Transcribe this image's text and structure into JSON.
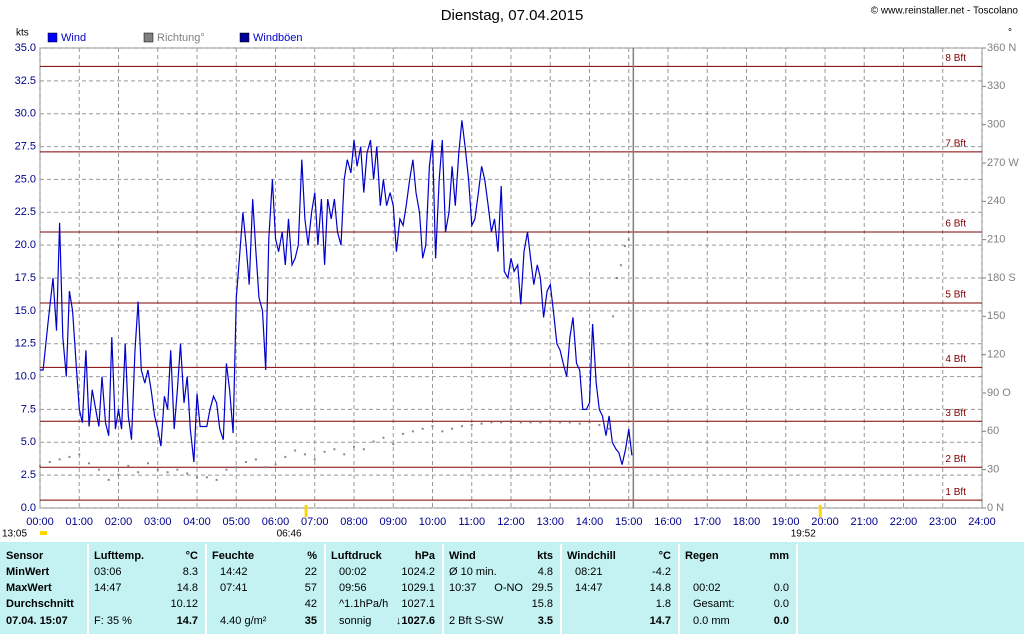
{
  "chart_data": {
    "type": "line",
    "title": "Dienstag, 07.04.2015",
    "credit": "© www.reinstaller.net - Toscolano",
    "ylabel": "kts",
    "y2label": "°",
    "legend": [
      {
        "name": "Wind",
        "color": "#0000ff"
      },
      {
        "name": "Richtung°",
        "color": "#808080"
      },
      {
        "name": "Windböen",
        "color": "#000099"
      }
    ],
    "xlim": [
      0,
      24
    ],
    "xticks": [
      {
        "value": 0,
        "label": "00:00"
      },
      {
        "value": 1,
        "label": "01:00"
      },
      {
        "value": 2,
        "label": "02:00"
      },
      {
        "value": 3,
        "label": "03:00"
      },
      {
        "value": 4,
        "label": "04:00"
      },
      {
        "value": 5,
        "label": "05:00"
      },
      {
        "value": 6,
        "label": "06:00"
      },
      {
        "value": 7,
        "label": "07:00"
      },
      {
        "value": 8,
        "label": "08:00"
      },
      {
        "value": 9,
        "label": "09:00"
      },
      {
        "value": 10,
        "label": "10:00"
      },
      {
        "value": 11,
        "label": "11:00"
      },
      {
        "value": 12,
        "label": "12:00"
      },
      {
        "value": 13,
        "label": "13:00"
      },
      {
        "value": 14,
        "label": "14:00"
      },
      {
        "value": 15,
        "label": "15:00"
      },
      {
        "value": 16,
        "label": "16:00"
      },
      {
        "value": 17,
        "label": "17:00"
      },
      {
        "value": 18,
        "label": "18:00"
      },
      {
        "value": 19,
        "label": "19:00"
      },
      {
        "value": 20,
        "label": "20:00"
      },
      {
        "value": 21,
        "label": "21:00"
      },
      {
        "value": 22,
        "label": "22:00"
      },
      {
        "value": 23,
        "label": "23:00"
      },
      {
        "value": 24,
        "label": "24:00"
      }
    ],
    "ylim": [
      0,
      35
    ],
    "yticks": [
      {
        "value": 0,
        "label": "0.0"
      },
      2.5,
      {
        "value": 5,
        "label": "5.0"
      },
      7.5,
      {
        "value": 10,
        "label": "10.0"
      },
      12.5,
      {
        "value": 15,
        "label": "15.0"
      },
      17.5,
      {
        "value": 20,
        "label": "20.0"
      },
      22.5,
      {
        "value": 25,
        "label": "25.0"
      },
      27.5,
      {
        "value": 30,
        "label": "30.0"
      },
      32.5,
      {
        "value": 35,
        "label": "35.0"
      }
    ],
    "y2lim": [
      0,
      360
    ],
    "y2ticks": [
      {
        "value": 0,
        "label": "0 N"
      },
      30,
      60,
      {
        "value": 90,
        "label": "90 O"
      },
      120,
      150,
      {
        "value": 180,
        "label": "180 S"
      },
      210,
      240,
      {
        "value": 270,
        "label": "270 W"
      },
      300,
      330,
      {
        "value": 360,
        "label": "360 N"
      }
    ],
    "grid": true,
    "beaufort": [
      {
        "value": 0.6,
        "label": "1 Bft"
      },
      {
        "value": 3.1,
        "label": "2 Bft"
      },
      {
        "value": 6.6,
        "label": "3 Bft"
      },
      {
        "value": 10.7,
        "label": "4 Bft"
      },
      {
        "value": 15.6,
        "label": "5 Bft"
      },
      {
        "value": 21,
        "label": "6 Bft"
      },
      {
        "value": 27.1,
        "label": "7 Bft"
      },
      {
        "value": 33.6,
        "label": "8 Bft"
      }
    ],
    "sunrise": {
      "value": 6.767,
      "label": "06:46"
    },
    "sunset": {
      "value": 19.867,
      "label": "19:52"
    },
    "day_length": "13:05",
    "now": 15.117,
    "series": [
      {
        "name": "Windböen",
        "color": "#0000cc",
        "x": [
          0,
          0.08,
          0.2,
          0.33,
          0.42,
          0.5,
          0.58,
          0.67,
          0.75,
          0.83,
          0.92,
          1,
          1.08,
          1.17,
          1.25,
          1.33,
          1.42,
          1.5,
          1.58,
          1.67,
          1.75,
          1.83,
          1.92,
          2,
          2.08,
          2.17,
          2.25,
          2.33,
          2.42,
          2.5,
          2.58,
          2.67,
          2.75,
          2.83,
          2.92,
          3,
          3.08,
          3.17,
          3.25,
          3.33,
          3.42,
          3.5,
          3.58,
          3.67,
          3.75,
          3.83,
          3.92,
          4,
          4.08,
          4.17,
          4.25,
          4.33,
          4.42,
          4.5,
          4.58,
          4.67,
          4.75,
          4.83,
          4.92,
          5,
          5.08,
          5.17,
          5.25,
          5.33,
          5.42,
          5.5,
          5.58,
          5.67,
          5.75,
          5.83,
          5.92,
          6,
          6.08,
          6.17,
          6.25,
          6.33,
          6.42,
          6.5,
          6.58,
          6.67,
          6.75,
          6.83,
          6.92,
          7,
          7.08,
          7.17,
          7.25,
          7.33,
          7.42,
          7.5,
          7.58,
          7.67,
          7.75,
          7.83,
          7.92,
          8,
          8.08,
          8.17,
          8.25,
          8.33,
          8.42,
          8.5,
          8.58,
          8.67,
          8.75,
          8.83,
          8.92,
          9,
          9.08,
          9.17,
          9.25,
          9.33,
          9.42,
          9.5,
          9.58,
          9.67,
          9.75,
          9.83,
          9.92,
          10,
          10.08,
          10.17,
          10.25,
          10.33,
          10.42,
          10.5,
          10.58,
          10.67,
          10.75,
          10.83,
          10.92,
          11,
          11.08,
          11.17,
          11.25,
          11.33,
          11.42,
          11.5,
          11.58,
          11.67,
          11.75,
          11.83,
          11.92,
          12,
          12.08,
          12.17,
          12.25,
          12.33,
          12.42,
          12.5,
          12.58,
          12.67,
          12.75,
          12.83,
          12.92,
          13,
          13.08,
          13.17,
          13.25,
          13.33,
          13.42,
          13.5,
          13.58,
          13.67,
          13.75,
          13.83,
          13.92,
          14,
          14.08,
          14.17,
          14.25,
          14.33,
          14.42,
          14.5,
          14.58,
          14.67,
          14.75,
          14.83,
          14.92,
          15,
          15.08
        ],
        "values": [
          10.5,
          10.5,
          14,
          17.5,
          13.5,
          21.7,
          13,
          10,
          16.5,
          15,
          11,
          7.5,
          6.5,
          12,
          6.2,
          9,
          7.5,
          6.2,
          10,
          6.5,
          5.5,
          13,
          6,
          7.5,
          6,
          12.5,
          7,
          5.2,
          12,
          15.7,
          10.5,
          9.5,
          10.5,
          9,
          7,
          6,
          4.7,
          8.5,
          7.5,
          12,
          6,
          9,
          12.5,
          8,
          10,
          6,
          3.5,
          8.7,
          6.2,
          6.2,
          6.2,
          7.5,
          8.5,
          8,
          6,
          5.2,
          11,
          9,
          5.7,
          16,
          19,
          22.5,
          20,
          17,
          23.5,
          19.5,
          16,
          15,
          10.5,
          20.5,
          25,
          20.5,
          19.5,
          21,
          18.5,
          22,
          18.5,
          19,
          20,
          26.5,
          22,
          20,
          22.5,
          24,
          20,
          23.5,
          18.5,
          23.5,
          22,
          23.5,
          21,
          20,
          25,
          26.5,
          25.5,
          28,
          26,
          27.5,
          24,
          27,
          28,
          25,
          27.5,
          23,
          25,
          23,
          24,
          23,
          19.5,
          22,
          21.5,
          23,
          25,
          26.5,
          24,
          22.5,
          19,
          20,
          26,
          28,
          19,
          25,
          28,
          21,
          22.5,
          26,
          23,
          27,
          29.5,
          27.5,
          25,
          21.5,
          22,
          24,
          26,
          25,
          23,
          21,
          22,
          19.5,
          24.5,
          18,
          17.5,
          19,
          18,
          18.5,
          15.5,
          19.5,
          21,
          19,
          17,
          18.5,
          17.5,
          14.5,
          16.5,
          17,
          15,
          12.5,
          12,
          11,
          10,
          13,
          14.5,
          11,
          10.5,
          7.5,
          7.5,
          8,
          14,
          9.5,
          7.5,
          7,
          5.5,
          7,
          5,
          4.5,
          4.2,
          3.3,
          4.5,
          6,
          4
        ]
      },
      {
        "name": "Richtung°",
        "color": "#888888",
        "axis": "y2",
        "x": [
          0,
          0.25,
          0.5,
          0.75,
          1,
          1.25,
          1.5,
          1.75,
          2,
          2.25,
          2.5,
          2.75,
          3,
          3.25,
          3.5,
          3.75,
          4,
          4.25,
          4.5,
          4.75,
          5,
          5.25,
          5.5,
          5.75,
          6,
          6.25,
          6.5,
          6.75,
          7,
          7.25,
          7.5,
          7.75,
          8,
          8.25,
          8.5,
          8.75,
          9,
          9.25,
          9.5,
          9.75,
          10,
          10.25,
          10.5,
          10.75,
          11,
          11.25,
          11.5,
          11.75,
          12,
          12.25,
          12.5,
          12.75,
          13,
          13.25,
          13.5,
          13.75,
          14,
          14.25,
          14.5,
          14.6,
          14.7,
          14.8,
          14.9,
          15
        ],
        "values": [
          33,
          36,
          38,
          40,
          42,
          35,
          30,
          22,
          26,
          33,
          28,
          35,
          30,
          28,
          30,
          27,
          24,
          24,
          22,
          30,
          32,
          36,
          38,
          32,
          34,
          40,
          45,
          42,
          38,
          44,
          46,
          42,
          48,
          46,
          52,
          55,
          50,
          58,
          60,
          62,
          64,
          60,
          62,
          64,
          65,
          66,
          67,
          67,
          67,
          67,
          67,
          67,
          67,
          67,
          67,
          66,
          67,
          65,
          62,
          150,
          180,
          190,
          205,
          210
        ]
      }
    ]
  },
  "table": {
    "groups": [
      {
        "title": "Sensor",
        "rows": [
          "MinWert",
          "MaxWert",
          "Durchschnitt",
          "07.04. 15:07"
        ]
      },
      {
        "title": "Lufttemp.",
        "unit": "°C",
        "rows": [
          {
            "left": "03:06",
            "right": "8.3"
          },
          {
            "left": "14:47",
            "right": "14.8"
          },
          {
            "right": "10.12"
          },
          {
            "left": "F: 35 %",
            "right": "14.7"
          }
        ]
      },
      {
        "title": "Feuchte",
        "unit": "%",
        "rows": [
          {
            "left": "14:42",
            "right": "22"
          },
          {
            "left": "07:41",
            "right": "57"
          },
          {
            "right": "42"
          },
          {
            "left": "4.40 g/m²",
            "right": "35"
          }
        ]
      },
      {
        "title": "Luftdruck",
        "unit": "hPa",
        "rows": [
          {
            "left": "00:02",
            "right": "1024.2"
          },
          {
            "left": "09:56",
            "right": "1029.1"
          },
          {
            "left": "^1.1hPa/h",
            "right": "1027.1"
          },
          {
            "left": "sonnig",
            "right": "↓1027.6"
          }
        ]
      },
      {
        "title": "Wind",
        "unit": "kts",
        "rows": [
          {
            "left": "Ø 10 min.",
            "right": "4.8"
          },
          {
            "left": "10:37",
            "mid": "O-NO",
            "right": "29.5"
          },
          {
            "right": "15.8"
          },
          {
            "left": "2 Bft S-SW",
            "right": "3.5"
          }
        ]
      },
      {
        "title": "Windchill",
        "unit": "°C",
        "rows": [
          {
            "left": "08:21",
            "right": "-4.2"
          },
          {
            "left": "14:47",
            "right": "14.8"
          },
          {
            "right": "1.8"
          },
          {
            "right": "14.7"
          }
        ]
      },
      {
        "title": "Regen",
        "unit": "mm",
        "rows": [
          {},
          {
            "left": "00:02",
            "right": "0.0"
          },
          {
            "left": "Gesamt:",
            "right": "0.0"
          },
          {
            "left": "0.0 mm",
            "right": "0.0"
          }
        ]
      }
    ]
  }
}
